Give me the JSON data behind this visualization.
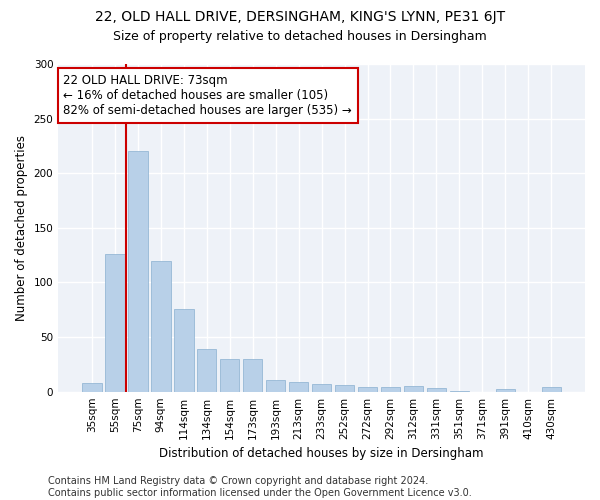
{
  "title1": "22, OLD HALL DRIVE, DERSINGHAM, KING'S LYNN, PE31 6JT",
  "title2": "Size of property relative to detached houses in Dersingham",
  "xlabel": "Distribution of detached houses by size in Dersingham",
  "ylabel": "Number of detached properties",
  "categories": [
    "35sqm",
    "55sqm",
    "75sqm",
    "94sqm",
    "114sqm",
    "134sqm",
    "154sqm",
    "173sqm",
    "193sqm",
    "213sqm",
    "233sqm",
    "252sqm",
    "272sqm",
    "292sqm",
    "312sqm",
    "331sqm",
    "351sqm",
    "371sqm",
    "391sqm",
    "410sqm",
    "430sqm"
  ],
  "values": [
    8,
    126,
    220,
    120,
    76,
    39,
    30,
    30,
    11,
    9,
    7,
    6,
    4,
    4,
    5,
    3,
    1,
    0,
    2,
    0,
    4
  ],
  "bar_color": "#b8d0e8",
  "bar_edge_color": "#8ab0d0",
  "vline_color": "#cc0000",
  "vline_x": 1.5,
  "annotation_text": "22 OLD HALL DRIVE: 73sqm\n← 16% of detached houses are smaller (105)\n82% of semi-detached houses are larger (535) →",
  "annotation_box_color": "#ffffff",
  "annotation_box_edge": "#cc0000",
  "ylim": [
    0,
    300
  ],
  "yticks": [
    0,
    50,
    100,
    150,
    200,
    250,
    300
  ],
  "footer": "Contains HM Land Registry data © Crown copyright and database right 2024.\nContains public sector information licensed under the Open Government Licence v3.0.",
  "fig_bg_color": "#ffffff",
  "bg_color": "#eef2f8",
  "grid_color": "#ffffff",
  "title1_fontsize": 10,
  "title2_fontsize": 9,
  "axis_label_fontsize": 8.5,
  "tick_fontsize": 7.5,
  "annotation_fontsize": 8.5,
  "footer_fontsize": 7
}
